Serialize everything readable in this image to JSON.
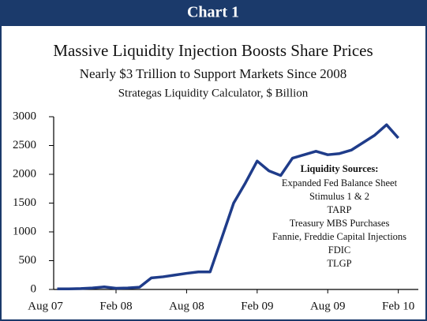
{
  "header": "Chart 1",
  "chart_data": {
    "type": "line",
    "title": "Massive Liquidity Injection Boosts Share Prices",
    "subtitle": "Nearly $3 Trillion to Support Markets Since 2008",
    "caption": "Strategas Liquidity Calculator, $ Billion",
    "x": [
      1,
      2,
      3,
      4,
      5,
      6,
      7,
      8,
      9,
      10,
      11,
      12,
      13,
      14,
      15,
      16,
      17,
      18,
      19,
      20,
      21,
      22,
      23,
      24,
      25,
      26,
      27,
      28,
      29,
      30
    ],
    "values": [
      10,
      10,
      15,
      25,
      45,
      20,
      25,
      40,
      200,
      220,
      250,
      280,
      305,
      305,
      900,
      1500,
      1850,
      2230,
      2060,
      1980,
      2280,
      2340,
      2400,
      2340,
      2360,
      2420,
      2550,
      2680,
      2860,
      2630
    ],
    "color": "#1f3c8a",
    "xlim": [
      0.7,
      31.7
    ],
    "xticks": [
      {
        "value": 0,
        "label": "Aug 07"
      },
      {
        "value": 6,
        "label": "Feb 08"
      },
      {
        "value": 12,
        "label": "Aug 08"
      },
      {
        "value": 18,
        "label": "Feb 09"
      },
      {
        "value": 24,
        "label": "Aug 09"
      },
      {
        "value": 30,
        "label": "Feb 10"
      }
    ],
    "ylim": [
      0,
      3000
    ],
    "yticks": [
      0,
      500,
      1000,
      1500,
      2000,
      2500,
      3000
    ],
    "annotation": {
      "title": "Liquidity Sources:",
      "items": [
        "Expanded Fed Balance Sheet",
        "Stimulus 1 & 2",
        "TARP",
        "Treasury MBS Purchases",
        "Fannie, Freddie Capital Injections",
        "FDIC",
        "TLGP"
      ]
    }
  }
}
